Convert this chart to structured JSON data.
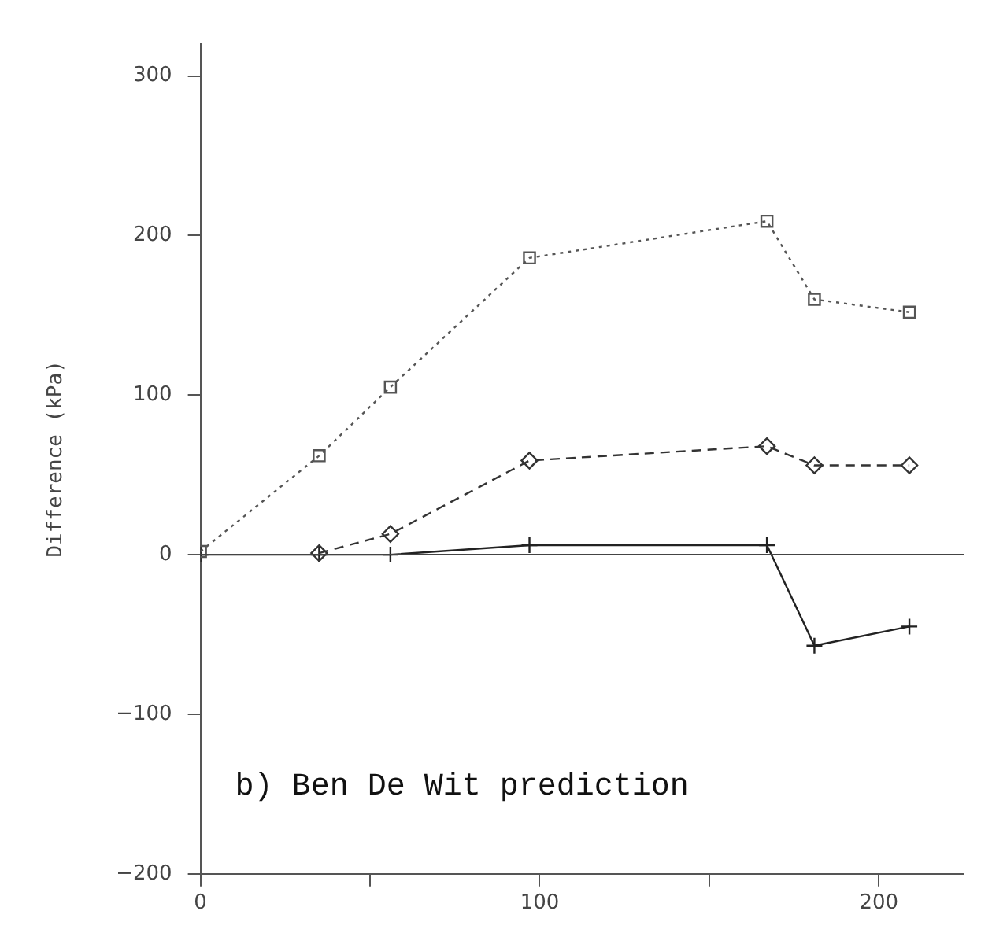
{
  "chart_data": {
    "type": "line",
    "ylabel": "Difference (kPa)",
    "x": [
      0,
      35,
      56,
      97,
      167,
      181,
      209
    ],
    "series": [
      {
        "color": "#555555",
        "values": [
          2,
          62,
          105,
          186,
          209,
          160,
          152
        ],
        "marker": "square",
        "line_style": "dotted"
      },
      {
        "color": "#333333",
        "values": [
          null,
          1,
          13,
          59,
          68,
          56,
          56
        ],
        "marker": "diamond",
        "line_style": "dashed"
      },
      {
        "color": "#222222",
        "values": [
          0,
          0,
          0,
          6,
          6,
          -57,
          -45
        ],
        "marker": "cross",
        "line_style": "solid"
      }
    ],
    "xlim": [
      0,
      225
    ],
    "xticks": [
      0,
      {
        "value": 50,
        "label": null
      },
      100,
      {
        "value": 150,
        "label": null
      },
      200
    ],
    "ylim": [
      -200,
      320
    ],
    "yticks": [
      -200,
      -100,
      0,
      100,
      200,
      300
    ],
    "ref_lines": [
      {
        "axis": "y",
        "value": 0,
        "color": "#444444"
      }
    ],
    "annotations": [
      "b) Ben De Wit prediction"
    ],
    "grid": false,
    "legend": false
  }
}
